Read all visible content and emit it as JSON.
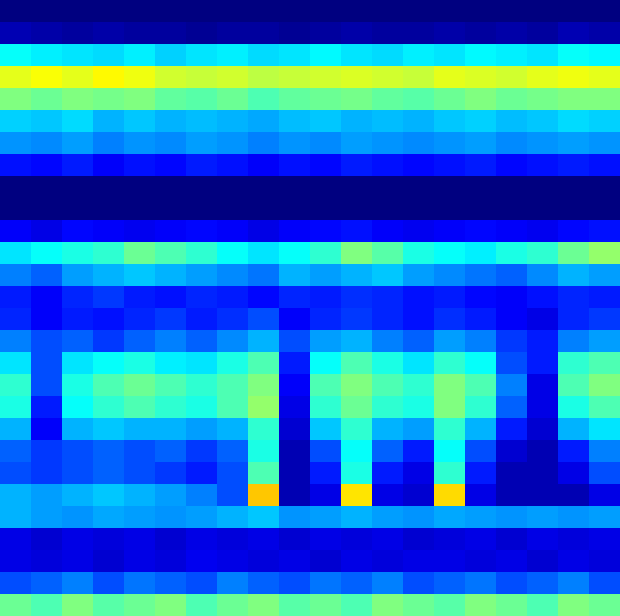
{
  "chart_data": {
    "type": "heatmap",
    "tick_labels": false,
    "cells": [
      [
        0,
        0,
        0,
        0,
        0,
        0,
        0,
        0,
        0,
        0,
        0,
        0,
        0,
        0,
        0,
        0,
        0,
        0,
        0,
        0
      ],
      [
        0.05,
        0.04,
        0.03,
        0.04,
        0.03,
        0.03,
        0.02,
        0.03,
        0.03,
        0.02,
        0.03,
        0.04,
        0.03,
        0.03,
        0.04,
        0.03,
        0.04,
        0.03,
        0.05,
        0.04
      ],
      [
        0.38,
        0.36,
        0.35,
        0.34,
        0.36,
        0.33,
        0.35,
        0.36,
        0.34,
        0.35,
        0.37,
        0.35,
        0.34,
        0.36,
        0.35,
        0.37,
        0.36,
        0.35,
        0.38,
        0.37
      ],
      [
        0.6,
        0.62,
        0.6,
        0.63,
        0.61,
        0.58,
        0.57,
        0.58,
        0.56,
        0.57,
        0.58,
        0.59,
        0.58,
        0.57,
        0.6,
        0.59,
        0.58,
        0.6,
        0.61,
        0.6
      ],
      [
        0.5,
        0.48,
        0.5,
        0.49,
        0.5,
        0.47,
        0.46,
        0.48,
        0.45,
        0.47,
        0.48,
        0.49,
        0.47,
        0.46,
        0.48,
        0.5,
        0.48,
        0.49,
        0.5,
        0.5
      ],
      [
        0.33,
        0.32,
        0.34,
        0.3,
        0.32,
        0.3,
        0.31,
        0.3,
        0.29,
        0.31,
        0.32,
        0.3,
        0.31,
        0.3,
        0.32,
        0.33,
        0.31,
        0.32,
        0.34,
        0.33
      ],
      [
        0.27,
        0.26,
        0.28,
        0.25,
        0.27,
        0.26,
        0.28,
        0.27,
        0.25,
        0.27,
        0.26,
        0.28,
        0.27,
        0.26,
        0.27,
        0.28,
        0.26,
        0.27,
        0.28,
        0.27
      ],
      [
        0.14,
        0.13,
        0.15,
        0.12,
        0.14,
        0.13,
        0.15,
        0.14,
        0.12,
        0.14,
        0.13,
        0.15,
        0.14,
        0.13,
        0.14,
        0.15,
        0.13,
        0.14,
        0.15,
        0.14
      ],
      [
        0,
        0,
        0,
        0,
        0,
        0,
        0,
        0,
        0,
        0,
        0,
        0,
        0,
        0,
        0,
        0,
        0,
        0,
        0,
        0
      ],
      [
        0,
        0,
        0,
        0,
        0,
        0,
        0,
        0,
        0,
        0,
        0,
        0,
        0,
        0,
        0,
        0,
        0,
        0,
        0,
        0
      ],
      [
        0.12,
        0.1,
        0.13,
        0.12,
        0.11,
        0.12,
        0.13,
        0.12,
        0.1,
        0.12,
        0.13,
        0.14,
        0.12,
        0.11,
        0.12,
        0.13,
        0.12,
        0.11,
        0.13,
        0.14
      ],
      [
        0.35,
        0.38,
        0.4,
        0.42,
        0.48,
        0.45,
        0.42,
        0.38,
        0.35,
        0.38,
        0.42,
        0.5,
        0.46,
        0.4,
        0.38,
        0.36,
        0.4,
        0.42,
        0.48,
        0.52
      ],
      [
        0.25,
        0.22,
        0.28,
        0.3,
        0.32,
        0.3,
        0.28,
        0.26,
        0.24,
        0.3,
        0.28,
        0.3,
        0.32,
        0.28,
        0.26,
        0.24,
        0.22,
        0.26,
        0.3,
        0.28
      ],
      [
        0.15,
        0.12,
        0.16,
        0.18,
        0.15,
        0.14,
        0.16,
        0.15,
        0.13,
        0.16,
        0.15,
        0.17,
        0.16,
        0.14,
        0.15,
        0.13,
        0.12,
        0.14,
        0.16,
        0.15
      ],
      [
        0.16,
        0.12,
        0.15,
        0.14,
        0.16,
        0.18,
        0.15,
        0.17,
        0.2,
        0.12,
        0.16,
        0.18,
        0.16,
        0.14,
        0.17,
        0.15,
        0.12,
        0.1,
        0.16,
        0.18
      ],
      [
        0.25,
        0.2,
        0.22,
        0.18,
        0.22,
        0.25,
        0.22,
        0.26,
        0.3,
        0.2,
        0.28,
        0.3,
        0.25,
        0.22,
        0.28,
        0.25,
        0.18,
        0.15,
        0.25,
        0.28
      ],
      [
        0.35,
        0.2,
        0.35,
        0.38,
        0.4,
        0.36,
        0.35,
        0.4,
        0.45,
        0.15,
        0.38,
        0.45,
        0.4,
        0.35,
        0.42,
        0.38,
        0.2,
        0.15,
        0.42,
        0.45
      ],
      [
        0.42,
        0.2,
        0.4,
        0.45,
        0.48,
        0.45,
        0.42,
        0.45,
        0.5,
        0.12,
        0.45,
        0.5,
        0.45,
        0.42,
        0.5,
        0.45,
        0.25,
        0.1,
        0.45,
        0.5
      ],
      [
        0.4,
        0.15,
        0.38,
        0.42,
        0.45,
        0.42,
        0.4,
        0.45,
        0.52,
        0.1,
        0.42,
        0.48,
        0.42,
        0.4,
        0.5,
        0.42,
        0.22,
        0.1,
        0.4,
        0.45
      ],
      [
        0.3,
        0.12,
        0.3,
        0.32,
        0.3,
        0.3,
        0.28,
        0.3,
        0.42,
        0.08,
        0.32,
        0.42,
        0.3,
        0.28,
        0.42,
        0.3,
        0.15,
        0.08,
        0.3,
        0.35
      ],
      [
        0.22,
        0.18,
        0.2,
        0.22,
        0.2,
        0.22,
        0.18,
        0.22,
        0.4,
        0.05,
        0.2,
        0.38,
        0.22,
        0.15,
        0.38,
        0.2,
        0.08,
        0.05,
        0.15,
        0.25
      ],
      [
        0.2,
        0.18,
        0.2,
        0.22,
        0.2,
        0.18,
        0.15,
        0.2,
        0.45,
        0.05,
        0.15,
        0.4,
        0.15,
        0.1,
        0.42,
        0.15,
        0.05,
        0.05,
        0.1,
        0.2
      ],
      [
        0.3,
        0.28,
        0.3,
        0.32,
        0.3,
        0.28,
        0.25,
        0.2,
        0.68,
        0.05,
        0.1,
        0.65,
        0.1,
        0.08,
        0.66,
        0.1,
        0.05,
        0.05,
        0.05,
        0.1
      ],
      [
        0.3,
        0.28,
        0.27,
        0.29,
        0.28,
        0.27,
        0.28,
        0.3,
        0.32,
        0.27,
        0.28,
        0.3,
        0.28,
        0.27,
        0.29,
        0.28,
        0.27,
        0.28,
        0.27,
        0.28
      ],
      [
        0.1,
        0.08,
        0.1,
        0.09,
        0.1,
        0.08,
        0.1,
        0.09,
        0.1,
        0.08,
        0.1,
        0.09,
        0.1,
        0.08,
        0.09,
        0.1,
        0.08,
        0.1,
        0.09,
        0.1
      ],
      [
        0.1,
        0.09,
        0.1,
        0.08,
        0.1,
        0.09,
        0.11,
        0.1,
        0.09,
        0.1,
        0.08,
        0.1,
        0.09,
        0.1,
        0.1,
        0.09,
        0.1,
        0.08,
        0.1,
        0.09
      ],
      [
        0.2,
        0.22,
        0.25,
        0.2,
        0.24,
        0.22,
        0.2,
        0.25,
        0.22,
        0.2,
        0.24,
        0.22,
        0.25,
        0.2,
        0.22,
        0.24,
        0.2,
        0.22,
        0.25,
        0.2
      ],
      [
        0.48,
        0.45,
        0.5,
        0.46,
        0.48,
        0.5,
        0.45,
        0.48,
        0.5,
        0.46,
        0.48,
        0.45,
        0.5,
        0.48,
        0.46,
        0.5,
        0.48,
        0.45,
        0.5,
        0.48
      ]
    ]
  }
}
